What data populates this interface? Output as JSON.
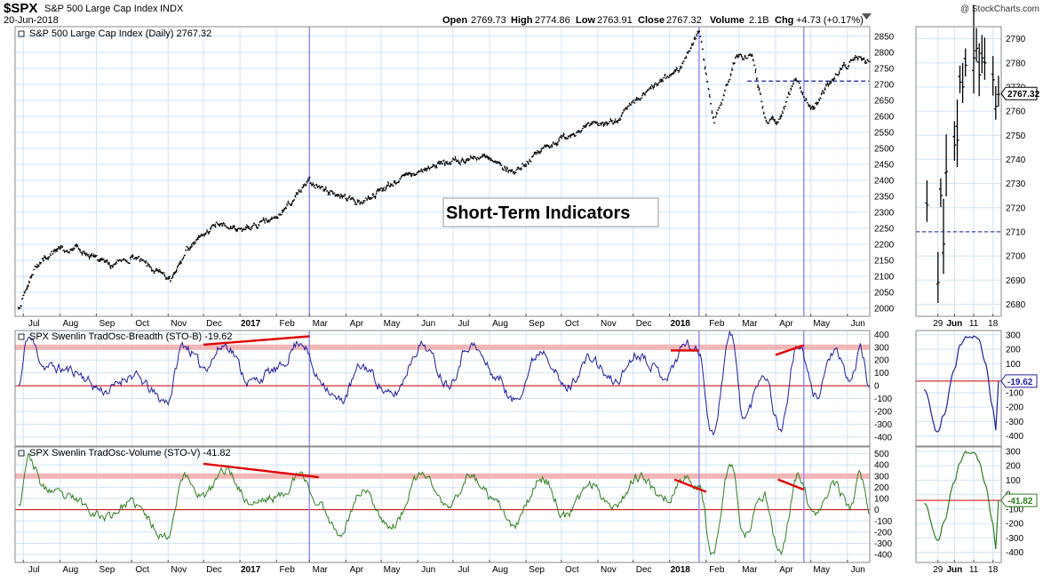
{
  "header": {
    "symbol": "$SPX",
    "name": "S&P 500 Large Cap Index",
    "exchange": "INDX",
    "date": "20-Jun-2018",
    "copyright": "@ StockCharts.com",
    "open_label": "Open",
    "open": "2769.73",
    "high_label": "High",
    "high": "2774.86",
    "low_label": "Low",
    "low": "2763.91",
    "close_label": "Close",
    "close": "2767.32",
    "volume_label": "Volume",
    "volume": "2.1B",
    "chg_label": "Chg",
    "chg": "+4.73 (+0.17%)"
  },
  "annotation": {
    "text": "Short-Term Indicators"
  },
  "colors": {
    "price": "#000000",
    "breadth": "#1f1fa0",
    "volume": "#2f7f1f",
    "zero_line": "#cc0000",
    "upper_band": "#f2b6b6",
    "trendline": "#e00000",
    "vertical_marker": "#9090ff",
    "grid": "#cfe3f5",
    "dashed_level": "#1f1fa0"
  },
  "chart_data": [
    {
      "id": "price",
      "type": "line",
      "title": "S&P 500 Large Cap Index (Daily) 2767.32",
      "ylim": [
        1975,
        2880
      ],
      "yticks": [
        2000,
        2050,
        2100,
        2150,
        2200,
        2250,
        2300,
        2350,
        2400,
        2450,
        2500,
        2550,
        2600,
        2650,
        2700,
        2750,
        2800,
        2850
      ],
      "last_value": "2767.32",
      "dashed_level": 2710,
      "xlabels": [
        "Jul",
        "Aug",
        "Sep",
        "Oct",
        "Nov",
        "Dec",
        "2017",
        "Feb",
        "Mar",
        "Apr",
        "May",
        "Jun",
        "Jul",
        "Aug",
        "Sep",
        "Oct",
        "Nov",
        "Dec",
        "2018",
        "Feb",
        "Mar",
        "Apr",
        "May",
        "Jun"
      ],
      "series": [
        {
          "x": [
            "2016-06-27",
            "2016-07-11",
            "2016-07-25",
            "2016-08-15",
            "2016-09-12",
            "2016-10-03",
            "2016-11-03",
            "2016-11-15",
            "2016-12-13",
            "2016-12-30",
            "2017-02-01",
            "2017-03-01",
            "2017-03-15",
            "2017-04-13",
            "2017-05-15",
            "2017-06-19",
            "2017-07-26",
            "2017-08-11",
            "2017-08-21",
            "2017-09-18",
            "2017-10-17",
            "2017-11-15",
            "2017-12-18",
            "2018-01-10",
            "2018-01-26",
            "2018-02-08",
            "2018-02-26",
            "2018-03-12",
            "2018-03-23",
            "2018-04-02",
            "2018-04-18",
            "2018-05-03",
            "2018-05-21",
            "2018-06-12",
            "2018-06-20"
          ],
          "values": [
            2000,
            2130,
            2175,
            2190,
            2130,
            2160,
            2085,
            2180,
            2265,
            2240,
            2280,
            2395,
            2370,
            2330,
            2400,
            2450,
            2475,
            2440,
            2425,
            2505,
            2560,
            2585,
            2690,
            2750,
            2870,
            2580,
            2780,
            2790,
            2590,
            2580,
            2710,
            2620,
            2730,
            2790,
            2767
          ]
        }
      ]
    },
    {
      "id": "price-zoom",
      "type": "line",
      "ylim": [
        2675,
        2795
      ],
      "yticks": [
        2680,
        2690,
        2700,
        2710,
        2720,
        2730,
        2740,
        2750,
        2760,
        2770,
        2780,
        2790
      ],
      "last_value": "2767.32",
      "xlabels": [
        "29",
        "Jun",
        "11",
        "18"
      ],
      "series": [
        {
          "x": [
            "2018-05-25",
            "2018-05-29",
            "2018-05-30",
            "2018-05-31",
            "2018-06-01",
            "2018-06-04",
            "2018-06-05",
            "2018-06-06",
            "2018-06-07",
            "2018-06-08",
            "2018-06-11",
            "2018-06-12",
            "2018-06-13",
            "2018-06-14",
            "2018-06-15",
            "2018-06-18",
            "2018-06-19",
            "2018-06-20"
          ],
          "values": [
            2721,
            2689,
            2725,
            2705,
            2735,
            2746,
            2748,
            2772,
            2770,
            2779,
            2782,
            2786,
            2775,
            2782,
            2780,
            2773,
            2762,
            2767
          ]
        }
      ]
    },
    {
      "id": "breadth",
      "type": "line",
      "title": "SPX Swenlin TradOsc-Breadth (STO-B) -19.62",
      "ylim": [
        -470,
        430
      ],
      "yticks": [
        -400,
        -300,
        -200,
        -100,
        0,
        100,
        200,
        300,
        400
      ],
      "upper_band": 300,
      "zero_line": 0,
      "last_value": "-19.62",
      "xlabels": [
        "Jul",
        "Aug",
        "Sep",
        "Oct",
        "Nov",
        "Dec",
        "2017",
        "Feb",
        "Mar",
        "Apr",
        "May",
        "Jun",
        "Jul",
        "Aug",
        "Sep",
        "Oct",
        "Nov",
        "Dec",
        "2018",
        "Feb",
        "Mar",
        "Apr",
        "May",
        "Jun"
      ],
      "series": [
        {
          "name": "STO-B",
          "x": [
            "2016-06-27",
            "2016-07-05",
            "2016-07-20",
            "2016-08-10",
            "2016-09-09",
            "2016-09-30",
            "2016-10-31",
            "2016-11-14",
            "2016-12-01",
            "2016-12-20",
            "2017-01-10",
            "2017-02-01",
            "2017-02-22",
            "2017-03-09",
            "2017-03-27",
            "2017-04-15",
            "2017-05-10",
            "2017-06-05",
            "2017-06-27",
            "2017-07-15",
            "2017-08-10",
            "2017-08-20",
            "2017-09-15",
            "2017-10-05",
            "2017-10-25",
            "2017-11-15",
            "2017-12-05",
            "2017-12-29",
            "2018-01-15",
            "2018-01-26",
            "2018-02-06",
            "2018-02-22",
            "2018-03-05",
            "2018-03-22",
            "2018-04-05",
            "2018-04-20",
            "2018-05-05",
            "2018-05-20",
            "2018-06-04",
            "2018-06-12",
            "2018-06-20"
          ],
          "values": [
            0,
            380,
            150,
            120,
            -40,
            80,
            -120,
            320,
            150,
            320,
            30,
            120,
            350,
            50,
            -120,
            150,
            -80,
            320,
            20,
            320,
            50,
            -120,
            280,
            -20,
            210,
            30,
            250,
            80,
            330,
            260,
            -380,
            400,
            -250,
            100,
            -330,
            320,
            -80,
            260,
            40,
            290,
            -19.62
          ]
        }
      ]
    },
    {
      "id": "breadth-zoom",
      "type": "line",
      "ylim": [
        -470,
        330
      ],
      "yticks": [
        -400,
        -300,
        -200,
        -100,
        0,
        100,
        200,
        300
      ],
      "zero_line": 0,
      "reference_line": -20,
      "last_value": "-19.62",
      "xlabels": [
        "29",
        "Jun",
        "11",
        "18"
      ],
      "series": [
        {
          "name": "STO-B",
          "x": [
            "2018-05-24",
            "2018-05-29",
            "2018-05-31",
            "2018-06-04",
            "2018-06-06",
            "2018-06-08",
            "2018-06-11",
            "2018-06-13",
            "2018-06-15",
            "2018-06-18",
            "2018-06-19",
            "2018-06-20"
          ],
          "values": [
            -80,
            -380,
            -250,
            60,
            220,
            290,
            290,
            260,
            120,
            -200,
            -350,
            -19.62
          ]
        }
      ]
    },
    {
      "id": "volume",
      "type": "line",
      "title": "SPX Swenlin TradOsc-Volume (STO-V) -41.82",
      "ylim": [
        -470,
        560
      ],
      "yticks": [
        -400,
        -300,
        -200,
        -100,
        0,
        100,
        200,
        300,
        400,
        500
      ],
      "upper_band": 300,
      "zero_line": 0,
      "last_value": "-41.82",
      "xlabels": [
        "Jul",
        "Aug",
        "Sep",
        "Oct",
        "Nov",
        "Dec",
        "2017",
        "Feb",
        "Mar",
        "Apr",
        "May",
        "Jun",
        "Jul",
        "Aug",
        "Sep",
        "Oct",
        "Nov",
        "Dec",
        "2018",
        "Feb",
        "Mar",
        "Apr",
        "May",
        "Jun"
      ],
      "series": [
        {
          "name": "STO-V",
          "x": [
            "2016-06-27",
            "2016-07-05",
            "2016-07-20",
            "2016-08-10",
            "2016-09-09",
            "2016-09-30",
            "2016-10-31",
            "2016-11-14",
            "2016-12-01",
            "2016-12-20",
            "2017-01-10",
            "2017-02-01",
            "2017-02-22",
            "2017-03-09",
            "2017-03-27",
            "2017-04-15",
            "2017-05-10",
            "2017-06-05",
            "2017-06-27",
            "2017-07-15",
            "2017-08-10",
            "2017-08-20",
            "2017-09-15",
            "2017-10-05",
            "2017-10-25",
            "2017-11-15",
            "2017-12-05",
            "2017-12-29",
            "2018-01-15",
            "2018-01-26",
            "2018-02-06",
            "2018-02-22",
            "2018-03-05",
            "2018-03-22",
            "2018-04-05",
            "2018-04-20",
            "2018-05-05",
            "2018-05-20",
            "2018-06-04",
            "2018-06-12",
            "2018-06-20"
          ],
          "values": [
            50,
            470,
            180,
            100,
            -60,
            60,
            -240,
            300,
            120,
            360,
            60,
            110,
            300,
            40,
            -200,
            170,
            -150,
            320,
            20,
            300,
            30,
            -160,
            280,
            -60,
            230,
            40,
            290,
            100,
            280,
            200,
            -380,
            410,
            -240,
            130,
            -380,
            290,
            -70,
            240,
            10,
            300,
            -41.82
          ]
        }
      ]
    },
    {
      "id": "volume-zoom",
      "type": "line",
      "ylim": [
        -470,
        330
      ],
      "yticks": [
        -400,
        -300,
        -200,
        -100,
        0,
        100,
        200,
        300
      ],
      "zero_line": 0,
      "reference_line": -40,
      "last_value": "-41.82",
      "xlabels": [
        "29",
        "Jun",
        "11",
        "18"
      ],
      "series": [
        {
          "name": "STO-V",
          "x": [
            "2018-05-24",
            "2018-05-29",
            "2018-05-31",
            "2018-06-04",
            "2018-06-06",
            "2018-06-08",
            "2018-06-11",
            "2018-06-13",
            "2018-06-15",
            "2018-06-18",
            "2018-06-19",
            "2018-06-20"
          ],
          "values": [
            -60,
            -330,
            -200,
            90,
            220,
            290,
            300,
            230,
            80,
            -200,
            -380,
            -41.82
          ]
        }
      ]
    }
  ],
  "trendlines": [
    {
      "panel": "breadth",
      "x1": "2016-12-01",
      "y1": 320,
      "x2": "2017-03-01",
      "y2": 385
    },
    {
      "panel": "breadth",
      "x1": "2018-01-02",
      "y1": 275,
      "x2": "2018-01-26",
      "y2": 275
    },
    {
      "panel": "breadth",
      "x1": "2018-04-01",
      "y1": 240,
      "x2": "2018-04-25",
      "y2": 315
    },
    {
      "panel": "volume",
      "x1": "2016-12-01",
      "y1": 410,
      "x2": "2017-03-09",
      "y2": 290
    },
    {
      "panel": "volume",
      "x1": "2018-01-05",
      "y1": 270,
      "x2": "2018-02-01",
      "y2": 160
    },
    {
      "panel": "volume",
      "x1": "2018-04-03",
      "y1": 270,
      "x2": "2018-04-25",
      "y2": 180
    }
  ],
  "vertical_markers": [
    "2017-03-01",
    "2018-01-26",
    "2018-04-25"
  ]
}
